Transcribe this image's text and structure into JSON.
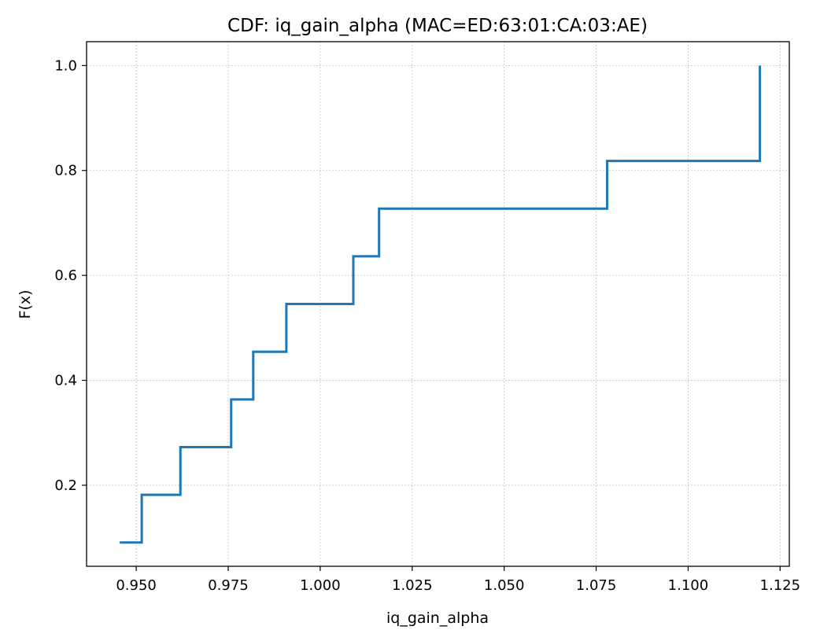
{
  "chart_data": {
    "type": "line",
    "step": "post",
    "title": "CDF: iq_gain_alpha (MAC=ED:63:01:CA:03:AE)",
    "xlabel": "iq_gain_alpha",
    "ylabel": "F(x)",
    "xlim": [
      0.9365,
      1.1275
    ],
    "ylim": [
      0.0455,
      1.0455
    ],
    "grid": true,
    "x_ticks": [
      {
        "value": 0.95,
        "label": "0.950"
      },
      {
        "value": 0.975,
        "label": "0.975"
      },
      {
        "value": 1.0,
        "label": "1.000"
      },
      {
        "value": 1.025,
        "label": "1.025"
      },
      {
        "value": 1.05,
        "label": "1.050"
      },
      {
        "value": 1.075,
        "label": "1.075"
      },
      {
        "value": 1.1,
        "label": "1.100"
      },
      {
        "value": 1.125,
        "label": "1.125"
      }
    ],
    "y_ticks": [
      {
        "value": 0.2,
        "label": "0.2"
      },
      {
        "value": 0.4,
        "label": "0.4"
      },
      {
        "value": 0.6,
        "label": "0.6"
      },
      {
        "value": 0.8,
        "label": "0.8"
      },
      {
        "value": 1.0,
        "label": "1.0"
      }
    ],
    "series": [
      {
        "color": "#1f77b4",
        "x": [
          0.9455,
          0.9515,
          0.962,
          0.9758,
          0.9818,
          0.9908,
          1.009,
          1.016,
          1.078,
          1.1195
        ],
        "y": [
          0.0909,
          0.1818,
          0.2727,
          0.3636,
          0.4545,
          0.5455,
          0.6364,
          0.7273,
          0.8182,
          1.0
        ]
      }
    ]
  }
}
